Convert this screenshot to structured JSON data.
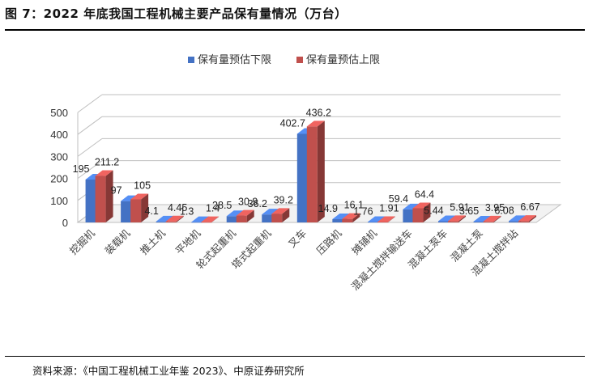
{
  "header": {
    "title": "图 7：2022 年底我国工程机械主要产品保有量情况（万台）"
  },
  "footer": {
    "source": "资料来源：《中国工程机械工业年鉴 2023》、中原证券研究所"
  },
  "colors": {
    "series_low": "#4472C4",
    "series_high": "#C0504D"
  },
  "chart_data": {
    "type": "bar",
    "style": "3d-clustered-column",
    "title": "",
    "xlabel": "",
    "ylabel": "",
    "ylim": [
      0,
      500
    ],
    "yticks": [
      0,
      100,
      200,
      300,
      400,
      500
    ],
    "grid": true,
    "legend_position": "top",
    "categories": [
      "挖掘机",
      "装载机",
      "推土机",
      "平地机",
      "轮式起重机",
      "塔式起重机",
      "叉车",
      "压路机",
      "摊铺机",
      "混凝土搅拌输送车",
      "混凝土泵车",
      "混凝土泵",
      "混凝土搅拌站"
    ],
    "series": [
      {
        "name": "保有量预估下限",
        "values": [
          195,
          97,
          4.1,
          1.3,
          28.5,
          36.2,
          402.7,
          14.9,
          1.76,
          59.4,
          5.44,
          3.65,
          6.08
        ]
      },
      {
        "name": "保有量预估上限",
        "values": [
          211.2,
          105,
          4.45,
          1.4,
          30.9,
          39.2,
          436.2,
          16.1,
          1.91,
          64.4,
          5.91,
          3.95,
          6.67
        ]
      }
    ]
  }
}
